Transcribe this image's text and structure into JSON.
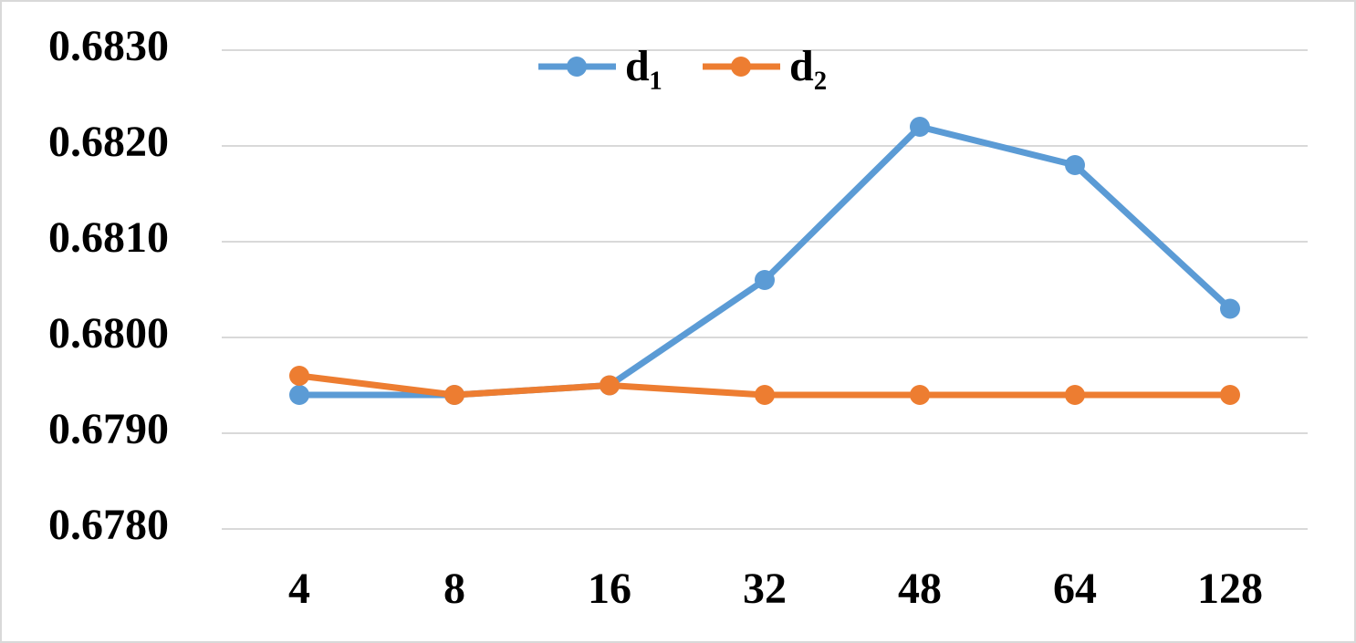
{
  "chart_data": {
    "type": "line",
    "categories": [
      "4",
      "8",
      "16",
      "32",
      "48",
      "64",
      "128"
    ],
    "series": [
      {
        "name": "d₁",
        "color": "#5b9bd5",
        "values": [
          0.6794,
          0.6794,
          0.6795,
          0.6806,
          0.6822,
          0.6818,
          0.6803
        ]
      },
      {
        "name": "d₂",
        "color": "#ed7d31",
        "values": [
          0.6796,
          0.6794,
          0.6795,
          0.6794,
          0.6794,
          0.6794,
          0.6794
        ]
      }
    ],
    "ylim": [
      0.678,
      0.683
    ],
    "yticks": [
      {
        "value": 0.678,
        "label": "0.6780"
      },
      {
        "value": 0.679,
        "label": "0.6790"
      },
      {
        "value": 0.68,
        "label": "0.6800"
      },
      {
        "value": 0.681,
        "label": "0.6810"
      },
      {
        "value": 0.682,
        "label": "0.6820"
      },
      {
        "value": 0.683,
        "label": "0.6830"
      }
    ],
    "grid": true,
    "legend": "top"
  }
}
